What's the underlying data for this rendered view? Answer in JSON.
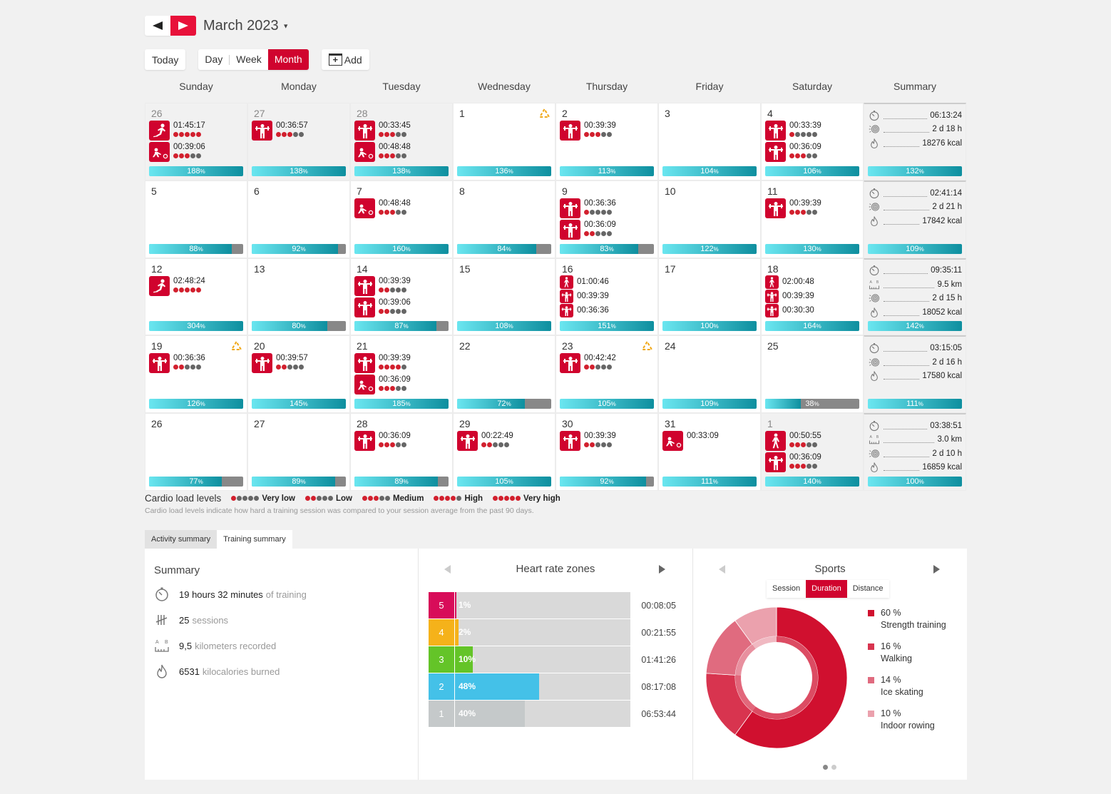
{
  "header": {
    "title": "March 2023",
    "prev_label": "previous",
    "next_label": "next"
  },
  "toolbar": {
    "today": "Today",
    "views": [
      "Day",
      "Week",
      "Month"
    ],
    "active_view": "Month",
    "add": "Add"
  },
  "colors": {
    "accent": "#d0032e",
    "bar_start": "#6ae6f0",
    "bar_end": "#0e8f9f",
    "dot_on": "#d2202e",
    "dot_off": "#666666"
  },
  "weekdays": [
    "Sunday",
    "Monday",
    "Tuesday",
    "Wednesday",
    "Thursday",
    "Friday",
    "Saturday",
    "Summary"
  ],
  "weeks": [
    {
      "days": [
        {
          "day": "26",
          "other": true,
          "load": 188,
          "sessions": [
            {
              "sport": "ice-skating",
              "time": "01:45:17",
              "level": 5
            },
            {
              "sport": "indoor-rowing",
              "time": "00:39:06",
              "level": 3
            }
          ]
        },
        {
          "day": "27",
          "other": true,
          "load": 138,
          "sessions": [
            {
              "sport": "strength",
              "time": "00:36:57",
              "level": 3
            }
          ]
        },
        {
          "day": "28",
          "other": true,
          "load": 138,
          "sessions": [
            {
              "sport": "strength",
              "time": "00:33:45",
              "level": 3
            },
            {
              "sport": "indoor-rowing",
              "time": "00:48:48",
              "level": 3
            }
          ]
        },
        {
          "day": "1",
          "load": 136,
          "warning": true,
          "sessions": []
        },
        {
          "day": "2",
          "load": 113,
          "sessions": [
            {
              "sport": "strength",
              "time": "00:39:39",
              "level": 3
            }
          ]
        },
        {
          "day": "3",
          "load": 104,
          "sessions": []
        },
        {
          "day": "4",
          "load": 106,
          "sessions": [
            {
              "sport": "strength",
              "time": "00:33:39",
              "level": 1
            },
            {
              "sport": "strength",
              "time": "00:36:09",
              "level": 3
            }
          ]
        }
      ],
      "summary": {
        "duration": "06:13:24",
        "recovery": "2 d 18 h",
        "calories": "18276 kcal",
        "load": 132
      }
    },
    {
      "days": [
        {
          "day": "5",
          "load": 88,
          "sessions": []
        },
        {
          "day": "6",
          "load": 92,
          "sessions": []
        },
        {
          "day": "7",
          "load": 160,
          "sessions": [
            {
              "sport": "indoor-rowing",
              "time": "00:48:48",
              "level": 3
            }
          ]
        },
        {
          "day": "8",
          "load": 84,
          "sessions": []
        },
        {
          "day": "9",
          "load": 83,
          "sessions": [
            {
              "sport": "strength",
              "time": "00:36:36",
              "level": 1
            },
            {
              "sport": "strength",
              "time": "00:36:09",
              "level": 2
            }
          ]
        },
        {
          "day": "10",
          "load": 122,
          "sessions": []
        },
        {
          "day": "11",
          "load": 130,
          "sessions": [
            {
              "sport": "strength",
              "time": "00:39:39",
              "level": 3
            }
          ]
        }
      ],
      "summary": {
        "duration": "02:41:14",
        "recovery": "2 d 21 h",
        "calories": "17842 kcal",
        "load": 109
      }
    },
    {
      "days": [
        {
          "day": "12",
          "load": 304,
          "sessions": [
            {
              "sport": "ice-skating",
              "time": "02:48:24",
              "level": 5
            }
          ]
        },
        {
          "day": "13",
          "load": 80,
          "sessions": []
        },
        {
          "day": "14",
          "load": 87,
          "sessions": [
            {
              "sport": "strength",
              "time": "00:39:39",
              "level": 2
            },
            {
              "sport": "strength",
              "time": "00:39:06",
              "level": 2
            }
          ]
        },
        {
          "day": "15",
          "load": 108,
          "sessions": []
        },
        {
          "day": "16",
          "load": 151,
          "compact": true,
          "sessions": [
            {
              "sport": "walking",
              "time": "01:00:46"
            },
            {
              "sport": "strength",
              "time": "00:39:39"
            },
            {
              "sport": "strength",
              "time": "00:36:36"
            }
          ]
        },
        {
          "day": "17",
          "load": 100,
          "sessions": []
        },
        {
          "day": "18",
          "load": 164,
          "compact": true,
          "sessions": [
            {
              "sport": "walking",
              "time": "02:00:48"
            },
            {
              "sport": "strength",
              "time": "00:39:39"
            },
            {
              "sport": "strength",
              "time": "00:30:30"
            }
          ]
        }
      ],
      "summary": {
        "duration": "09:35:11",
        "distance": "9.5 km",
        "recovery": "2 d 15 h",
        "calories": "18052 kcal",
        "load": 142
      }
    },
    {
      "days": [
        {
          "day": "19",
          "load": 126,
          "warning": true,
          "sessions": [
            {
              "sport": "strength",
              "time": "00:36:36",
              "level": 2
            }
          ]
        },
        {
          "day": "20",
          "load": 145,
          "sessions": [
            {
              "sport": "strength",
              "time": "00:39:57",
              "level": 2
            }
          ]
        },
        {
          "day": "21",
          "load": 185,
          "sessions": [
            {
              "sport": "strength",
              "time": "00:39:39",
              "level": 4
            },
            {
              "sport": "indoor-rowing",
              "time": "00:36:09",
              "level": 3
            }
          ]
        },
        {
          "day": "22",
          "load": 72,
          "sessions": []
        },
        {
          "day": "23",
          "load": 105,
          "warning": true,
          "sessions": [
            {
              "sport": "strength",
              "time": "00:42:42",
              "level": 2
            }
          ]
        },
        {
          "day": "24",
          "load": 109,
          "sessions": []
        },
        {
          "day": "25",
          "load": 38,
          "sessions": []
        }
      ],
      "summary": {
        "duration": "03:15:05",
        "recovery": "2 d 16 h",
        "calories": "17580 kcal",
        "load": 111
      }
    },
    {
      "days": [
        {
          "day": "26",
          "load": 77,
          "sessions": []
        },
        {
          "day": "27",
          "load": 89,
          "sessions": []
        },
        {
          "day": "28",
          "load": 89,
          "sessions": [
            {
              "sport": "strength",
              "time": "00:36:09",
              "level": 3
            }
          ]
        },
        {
          "day": "29",
          "load": 105,
          "sessions": [
            {
              "sport": "strength",
              "time": "00:22:49",
              "level": 2
            }
          ]
        },
        {
          "day": "30",
          "load": 92,
          "sessions": [
            {
              "sport": "strength",
              "time": "00:39:39",
              "level": 2
            }
          ]
        },
        {
          "day": "31",
          "load": 111,
          "sessions": [
            {
              "sport": "indoor-rowing",
              "time": "00:33:09",
              "level": 0
            }
          ]
        },
        {
          "day": "1",
          "other": true,
          "load": 140,
          "sessions": [
            {
              "sport": "walking",
              "time": "00:50:55",
              "level": 3
            },
            {
              "sport": "strength",
              "time": "00:36:09",
              "level": 3
            }
          ]
        }
      ],
      "summary": {
        "duration": "03:38:51",
        "distance": "3.0 km",
        "recovery": "2 d 10 h",
        "calories": "16859 kcal",
        "load": 100
      }
    }
  ],
  "legend": {
    "title": "Cardio load levels",
    "levels": [
      {
        "label": "Very low",
        "level": 1
      },
      {
        "label": "Low",
        "level": 2
      },
      {
        "label": "Medium",
        "level": 3
      },
      {
        "label": "High",
        "level": 4
      },
      {
        "label": "Very high",
        "level": 5
      }
    ],
    "note": "Cardio load levels indicate how hard a training session was compared to your session average from the past 90 days."
  },
  "tabs": [
    {
      "label": "Activity summary",
      "active": false
    },
    {
      "label": "Training summary",
      "active": true
    }
  ],
  "summary_panel": {
    "title": "Summary",
    "rows": [
      {
        "icon": "stopwatch-icon",
        "value": "19 hours 32 minutes",
        "label": "of training"
      },
      {
        "icon": "tally-icon",
        "value": "25",
        "label": "sessions"
      },
      {
        "icon": "distance-icon",
        "value": "9,5",
        "label": "kilometers recorded"
      },
      {
        "icon": "flame-icon",
        "value": "6531",
        "label": "kilocalories burned"
      }
    ]
  },
  "hr_zones": {
    "title": "Heart rate zones",
    "zones": [
      {
        "zone": "5",
        "percent": 1,
        "time": "00:08:05",
        "color": "#d80c59"
      },
      {
        "zone": "4",
        "percent": 2,
        "time": "00:21:55",
        "color": "#f5b21a"
      },
      {
        "zone": "3",
        "percent": 10,
        "time": "01:41:26",
        "color": "#64c428"
      },
      {
        "zone": "2",
        "percent": 48,
        "time": "08:17:08",
        "color": "#44c1e8"
      },
      {
        "zone": "1",
        "percent": 40,
        "time": "06:53:44",
        "color": "#c5c9ca"
      }
    ]
  },
  "sports": {
    "title": "Sports",
    "modes": [
      "Session",
      "Duration",
      "Distance"
    ],
    "active_mode": "Duration",
    "items": [
      {
        "percent": 60,
        "pct_label": "60 %",
        "name": "Strength training",
        "color": "#d0102f"
      },
      {
        "percent": 16,
        "pct_label": "16 %",
        "name": "Walking",
        "color": "#d8344f"
      },
      {
        "percent": 14,
        "pct_label": "14 %",
        "name": "Ice skating",
        "color": "#e06b7f"
      },
      {
        "percent": 10,
        "pct_label": "10 %",
        "name": "Indoor rowing",
        "color": "#eba1ad"
      }
    ],
    "pages": 2,
    "current_page": 1
  }
}
